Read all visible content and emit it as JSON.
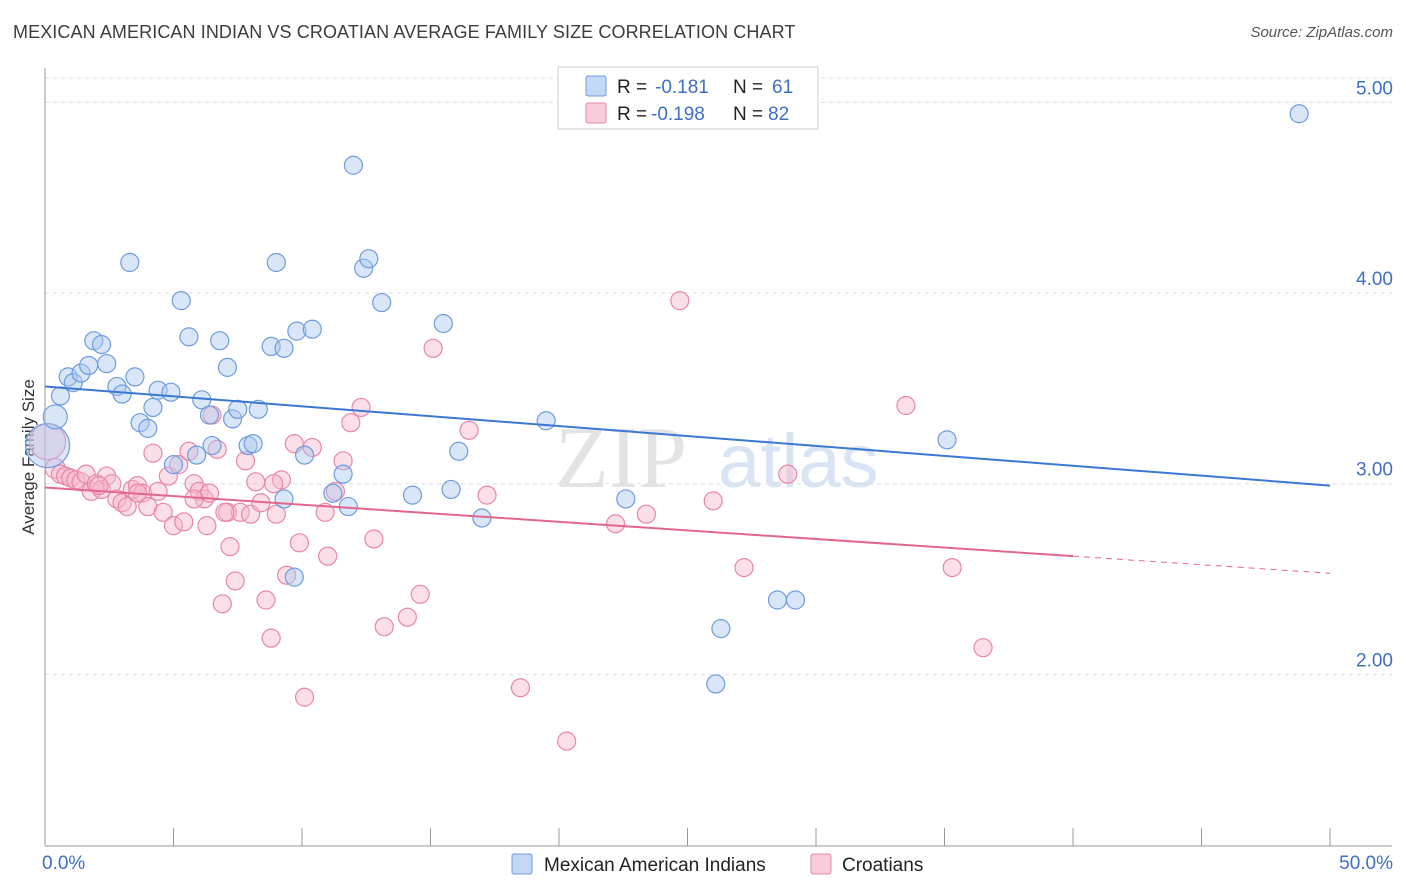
{
  "title": "MEXICAN AMERICAN INDIAN VS CROATIAN AVERAGE FAMILY SIZE CORRELATION CHART",
  "source": "Source: ZipAtlas.com",
  "watermark": {
    "zip": "ZIP",
    "atlas": "atlas"
  },
  "colors": {
    "blue_fill": "#aac8f0",
    "blue_stroke": "#6d9be0",
    "blue_line": "#3a78d4",
    "pink_fill": "#f5b8cc",
    "pink_stroke": "#e986a8",
    "pink_line": "#e2678f",
    "axis_text": "#3f6fc4",
    "grid": "#dddddd"
  },
  "legend": {
    "rows": [
      {
        "r_label": "R =",
        "r_value": "-0.181",
        "n_label": "N =",
        "n_value": "61"
      },
      {
        "r_label": "R =",
        "r_value": "-0.198",
        "n_label": "N =",
        "n_value": "82"
      }
    ]
  },
  "chart_data": {
    "type": "scatter",
    "title": "MEXICAN AMERICAN INDIAN VS CROATIAN AVERAGE FAMILY SIZE CORRELATION CHART",
    "xlabel": "",
    "ylabel": "Average Family Size",
    "xlim": [
      0,
      50
    ],
    "ylim": [
      1.1,
      5.18
    ],
    "x_tick_labels": [
      "0.0%",
      "50.0%"
    ],
    "y_ticks": [
      2.0,
      3.0,
      4.0,
      5.0
    ],
    "y_tick_labels": [
      "2.00",
      "3.00",
      "4.00",
      "5.00"
    ],
    "grid": true,
    "legend_position": "top-center",
    "series": [
      {
        "name": "Mexican American Indians",
        "r": -0.181,
        "n": 61,
        "trend": {
          "x0": 0,
          "y0": 3.51,
          "x1": 50,
          "y1": 2.99
        },
        "points": [
          [
            0.1,
            3.2,
            22
          ],
          [
            0.4,
            3.35,
            12
          ],
          [
            0.6,
            3.46,
            9
          ],
          [
            0.9,
            3.56,
            9
          ],
          [
            1.1,
            3.53,
            9
          ],
          [
            1.4,
            3.58,
            9
          ],
          [
            1.7,
            3.62,
            9
          ],
          [
            1.9,
            3.75,
            9
          ],
          [
            2.2,
            3.73,
            9
          ],
          [
            2.4,
            3.63,
            9
          ],
          [
            2.8,
            3.51,
            9
          ],
          [
            3.0,
            3.47,
            9
          ],
          [
            3.3,
            4.16,
            9
          ],
          [
            3.5,
            3.56,
            9
          ],
          [
            3.7,
            3.32,
            9
          ],
          [
            4.0,
            3.29,
            9
          ],
          [
            4.2,
            3.4,
            9
          ],
          [
            4.4,
            3.49,
            9
          ],
          [
            4.9,
            3.48,
            9
          ],
          [
            5.0,
            3.1,
            9
          ],
          [
            5.3,
            3.96,
            9
          ],
          [
            5.6,
            3.77,
            9
          ],
          [
            5.9,
            3.15,
            9
          ],
          [
            6.1,
            3.44,
            9
          ],
          [
            6.4,
            3.36,
            9
          ],
          [
            6.5,
            3.2,
            9
          ],
          [
            6.8,
            3.75,
            9
          ],
          [
            7.1,
            3.61,
            9
          ],
          [
            7.3,
            3.34,
            9
          ],
          [
            7.5,
            3.39,
            9
          ],
          [
            7.9,
            3.2,
            9
          ],
          [
            8.1,
            3.21,
            9
          ],
          [
            8.3,
            3.39,
            9
          ],
          [
            8.8,
            3.72,
            9
          ],
          [
            9.0,
            4.16,
            9
          ],
          [
            9.3,
            3.71,
            9
          ],
          [
            9.8,
            3.8,
            9
          ],
          [
            10.1,
            3.15,
            9
          ],
          [
            10.4,
            3.81,
            9
          ],
          [
            11.2,
            2.95,
            9
          ],
          [
            11.6,
            3.05,
            9
          ],
          [
            11.8,
            2.88,
            9
          ],
          [
            12.0,
            4.67,
            9
          ],
          [
            12.4,
            4.13,
            9
          ],
          [
            12.6,
            4.18,
            9
          ],
          [
            13.1,
            3.95,
            9
          ],
          [
            14.3,
            2.94,
            9
          ],
          [
            15.5,
            3.84,
            9
          ],
          [
            15.8,
            2.97,
            9
          ],
          [
            16.1,
            3.17,
            9
          ],
          [
            17.0,
            2.82,
            9
          ],
          [
            19.5,
            3.33,
            9
          ],
          [
            22.6,
            2.92,
            9
          ],
          [
            26.1,
            1.95,
            9
          ],
          [
            26.3,
            2.24,
            9
          ],
          [
            28.5,
            2.39,
            9
          ],
          [
            29.2,
            2.39,
            9
          ],
          [
            35.1,
            3.23,
            9
          ],
          [
            48.8,
            4.94,
            9
          ],
          [
            9.3,
            2.92,
            9
          ],
          [
            9.7,
            2.51,
            9
          ]
        ]
      },
      {
        "name": "Croatians",
        "r": -0.198,
        "n": 82,
        "trend": {
          "x0": 0,
          "y0": 2.98,
          "x1": 40,
          "y1": 2.62
        },
        "trend_dashed": {
          "x0": 40,
          "y0": 2.62,
          "x1": 50,
          "y1": 2.53
        },
        "points": [
          [
            0.1,
            3.22,
            18
          ],
          [
            0.4,
            3.08,
            10
          ],
          [
            0.6,
            3.05,
            9
          ],
          [
            0.8,
            3.04,
            9
          ],
          [
            1.0,
            3.03,
            9
          ],
          [
            1.2,
            3.02,
            9
          ],
          [
            1.4,
            3.01,
            9
          ],
          [
            1.6,
            3.05,
            9
          ],
          [
            1.8,
            2.96,
            9
          ],
          [
            2.0,
            3.0,
            9
          ],
          [
            2.2,
            2.97,
            9
          ],
          [
            2.4,
            3.04,
            9
          ],
          [
            2.6,
            3.0,
            9
          ],
          [
            2.8,
            2.92,
            9
          ],
          [
            3.0,
            2.9,
            9
          ],
          [
            3.2,
            2.88,
            9
          ],
          [
            3.4,
            2.97,
            9
          ],
          [
            3.6,
            2.99,
            9
          ],
          [
            3.8,
            2.95,
            9
          ],
          [
            4.0,
            2.88,
            9
          ],
          [
            4.2,
            3.16,
            9
          ],
          [
            4.4,
            2.96,
            9
          ],
          [
            4.6,
            2.85,
            9
          ],
          [
            4.8,
            3.04,
            9
          ],
          [
            5.0,
            2.78,
            9
          ],
          [
            5.2,
            3.1,
            9
          ],
          [
            5.4,
            2.8,
            9
          ],
          [
            5.6,
            3.17,
            9
          ],
          [
            5.8,
            3.0,
            9
          ],
          [
            6.0,
            2.96,
            9
          ],
          [
            6.2,
            2.92,
            9
          ],
          [
            6.4,
            2.95,
            9
          ],
          [
            6.5,
            3.36,
            9
          ],
          [
            6.7,
            3.18,
            9
          ],
          [
            6.9,
            2.37,
            9
          ],
          [
            7.1,
            2.85,
            9
          ],
          [
            7.2,
            2.67,
            9
          ],
          [
            7.4,
            2.49,
            9
          ],
          [
            7.6,
            2.85,
            9
          ],
          [
            7.8,
            3.12,
            9
          ],
          [
            8.0,
            2.84,
            9
          ],
          [
            8.2,
            3.01,
            9
          ],
          [
            8.4,
            2.9,
            9
          ],
          [
            8.6,
            2.39,
            9
          ],
          [
            8.8,
            2.19,
            9
          ],
          [
            9.0,
            2.84,
            9
          ],
          [
            9.2,
            3.02,
            9
          ],
          [
            9.4,
            2.52,
            9
          ],
          [
            9.7,
            3.21,
            9
          ],
          [
            9.9,
            2.69,
            9
          ],
          [
            10.1,
            1.88,
            9
          ],
          [
            10.4,
            3.19,
            9
          ],
          [
            11.0,
            2.62,
            9
          ],
          [
            11.3,
            2.96,
            9
          ],
          [
            11.6,
            3.12,
            9
          ],
          [
            11.9,
            3.32,
            9
          ],
          [
            12.3,
            3.4,
            9
          ],
          [
            13.2,
            2.25,
            9
          ],
          [
            14.1,
            2.3,
            9
          ],
          [
            14.6,
            2.42,
            9
          ],
          [
            15.1,
            3.71,
            9
          ],
          [
            16.5,
            3.28,
            9
          ],
          [
            17.2,
            2.94,
            9
          ],
          [
            18.5,
            1.93,
            9
          ],
          [
            20.3,
            1.65,
            9
          ],
          [
            22.2,
            2.79,
            9
          ],
          [
            23.4,
            2.84,
            9
          ],
          [
            24.7,
            3.96,
            9
          ],
          [
            26.0,
            2.91,
            9
          ],
          [
            27.2,
            2.56,
            9
          ],
          [
            28.9,
            3.05,
            9
          ],
          [
            33.5,
            3.41,
            9
          ],
          [
            35.3,
            2.56,
            9
          ],
          [
            36.5,
            2.14,
            9
          ],
          [
            12.8,
            2.71,
            9
          ],
          [
            7.0,
            2.85,
            9
          ],
          [
            5.8,
            2.92,
            9
          ],
          [
            6.3,
            2.78,
            9
          ],
          [
            10.9,
            2.85,
            9
          ],
          [
            8.9,
            3.0,
            9
          ],
          [
            3.6,
            2.95,
            9
          ],
          [
            2.1,
            2.99,
            9
          ]
        ]
      }
    ]
  }
}
